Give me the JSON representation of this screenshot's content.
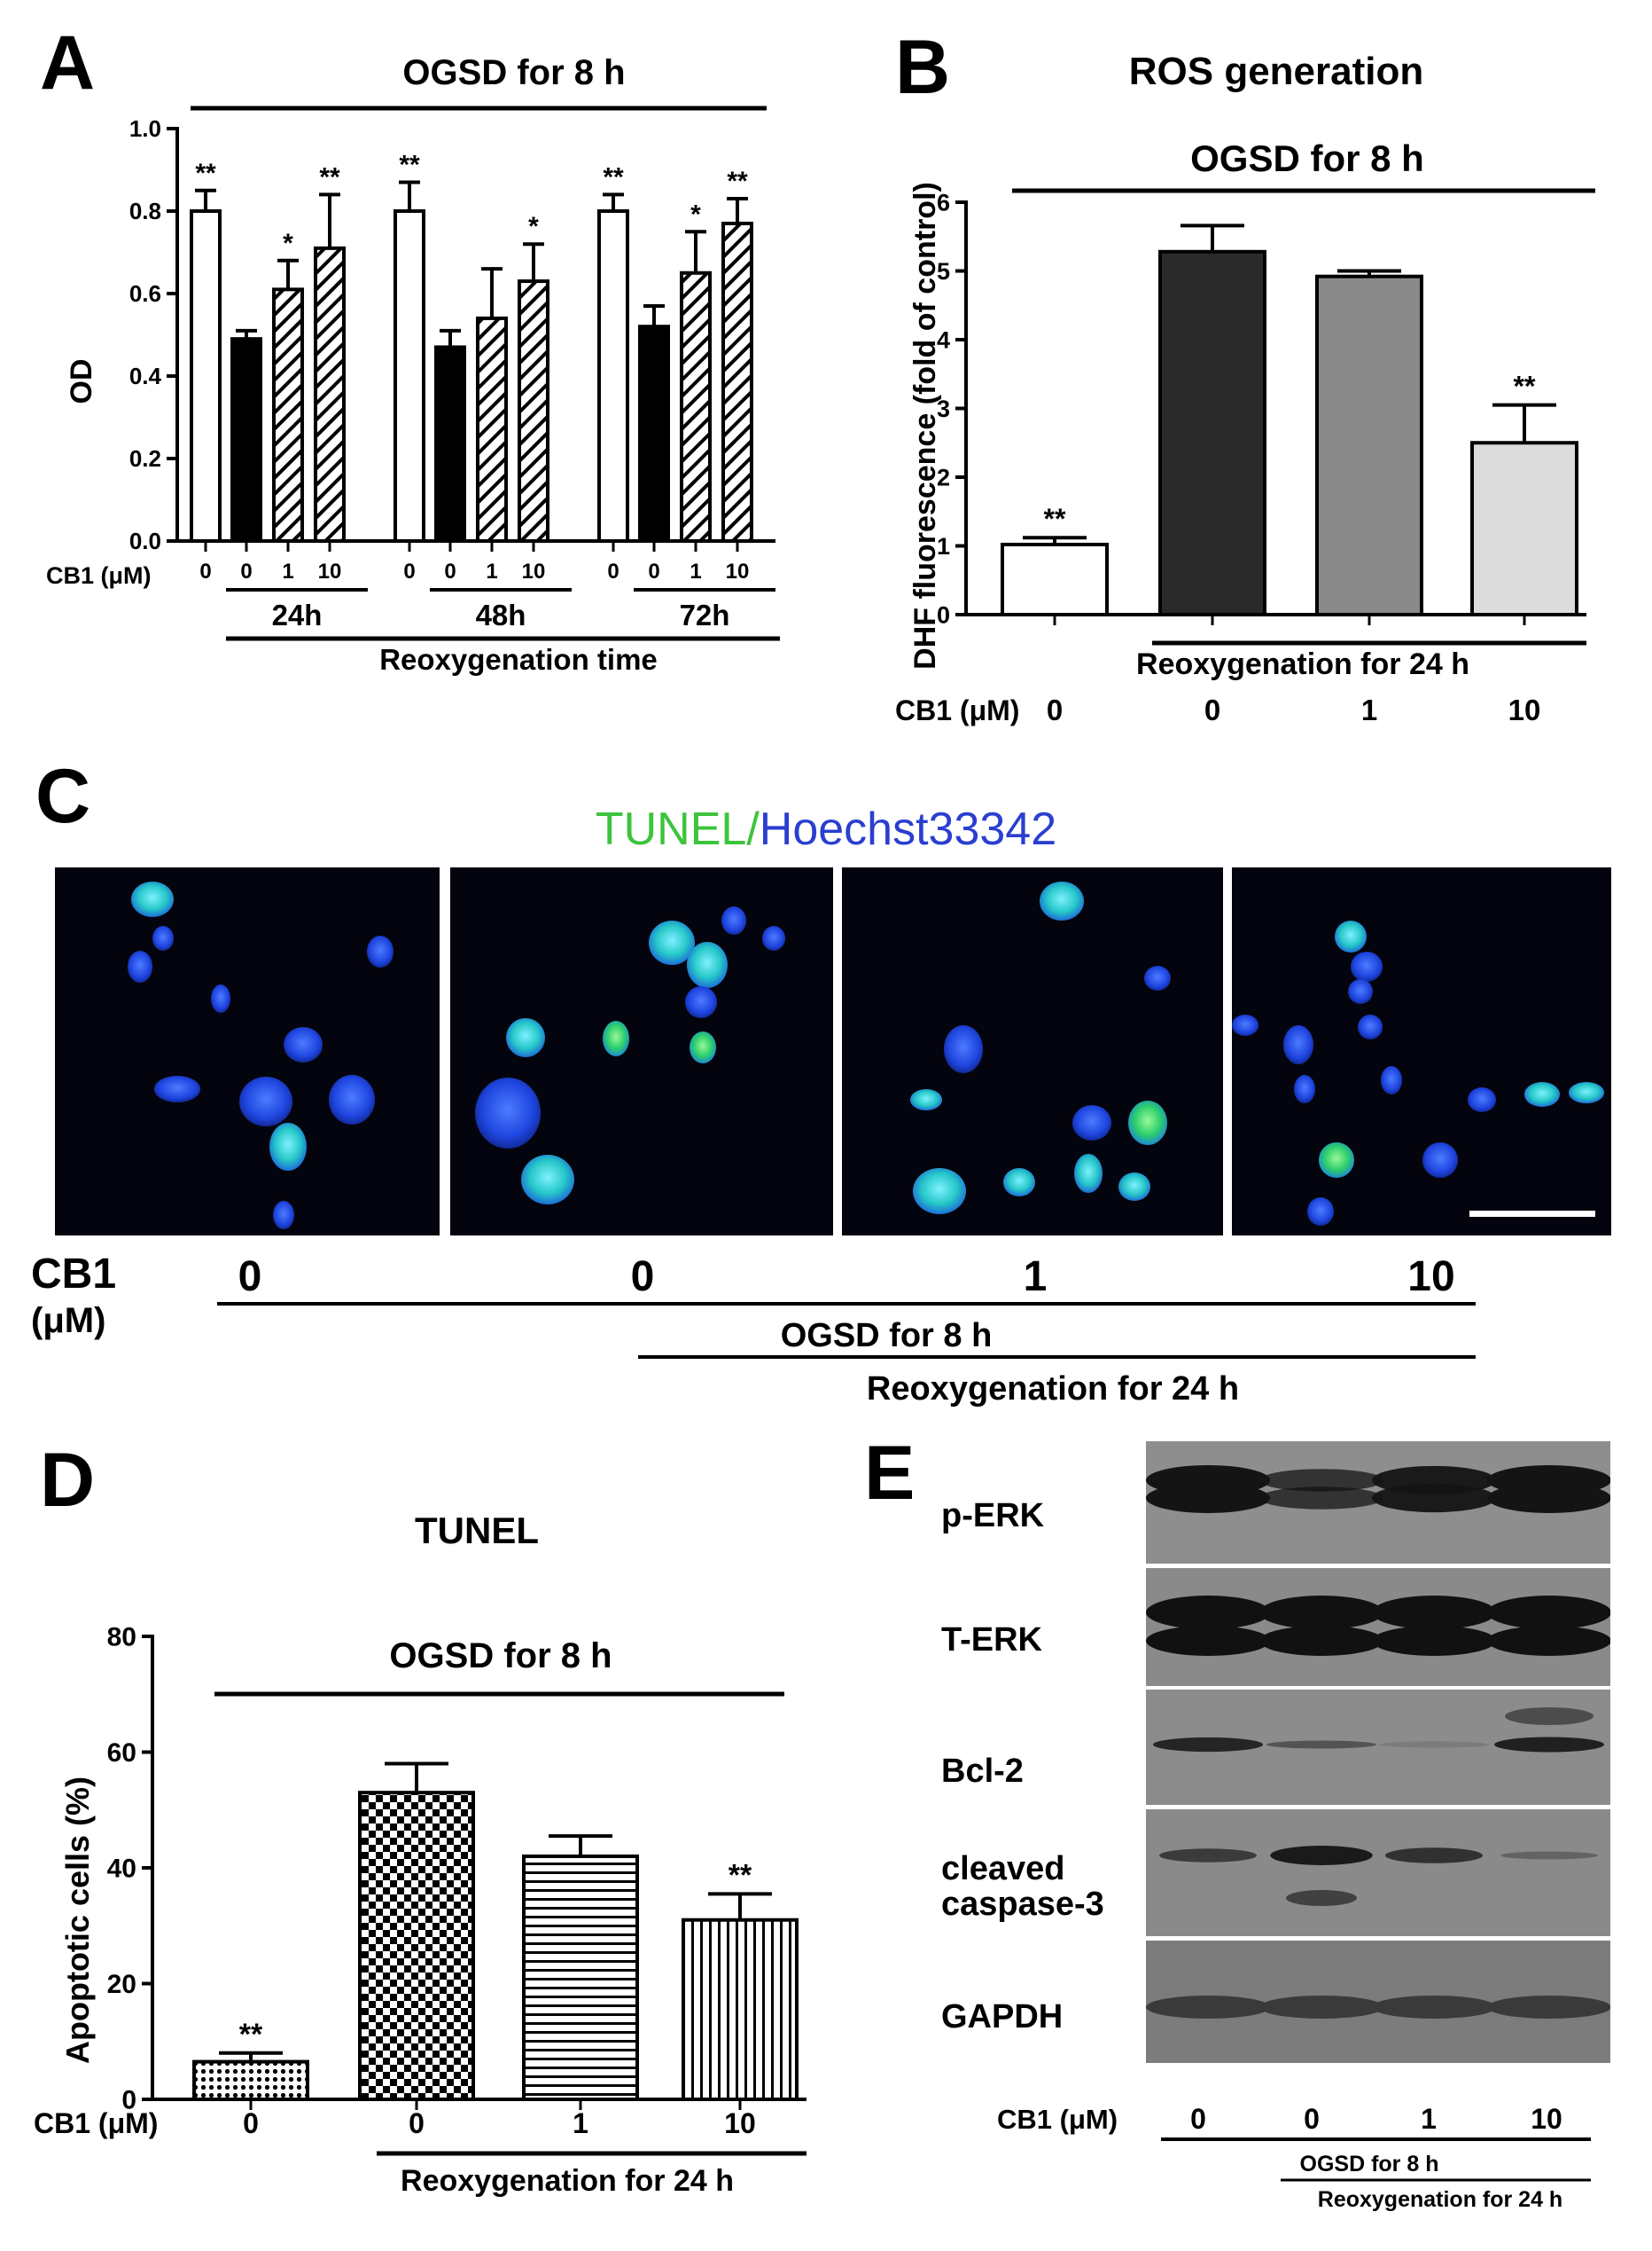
{
  "panels": {
    "a": "A",
    "b": "B",
    "c": "C",
    "d": "D",
    "e": "E"
  },
  "chart_data": [
    {
      "panel": "A",
      "type": "bar",
      "title": "OGSD for 8 h",
      "ylabel": "OD",
      "xlabel": "Reoxygenation time",
      "ylim": [
        0,
        1.0
      ],
      "yticks": [
        "0.0",
        "0.2",
        "0.4",
        "0.6",
        "0.8",
        "1.0"
      ],
      "cb1_label": "CB1 (μM)",
      "categories": [
        "0",
        "0",
        "1",
        "10",
        "0",
        "0",
        "1",
        "10",
        "0",
        "0",
        "1",
        "10"
      ],
      "groups": [
        "24h",
        "48h",
        "72h"
      ],
      "values": [
        0.8,
        0.49,
        0.61,
        0.71,
        0.8,
        0.47,
        0.54,
        0.63,
        0.8,
        0.52,
        0.65,
        0.77
      ],
      "errors": [
        0.05,
        0.02,
        0.07,
        0.13,
        0.07,
        0.04,
        0.12,
        0.09,
        0.04,
        0.05,
        0.1,
        0.06
      ],
      "significance": [
        "**",
        "",
        "*",
        "**",
        "**",
        "",
        "",
        "*",
        "**",
        "",
        "*",
        "**"
      ],
      "fills": [
        "white",
        "black",
        "hatch",
        "hatch",
        "white",
        "black",
        "hatch",
        "hatch",
        "white",
        "black",
        "hatch",
        "hatch"
      ]
    },
    {
      "panel": "B",
      "type": "bar",
      "title": "ROS generation",
      "subtitle": "OGSD for 8 h",
      "ylabel": "DHF fluorescence (fold of control)",
      "xlabel": "Reoxygenation for 24 h",
      "ylim": [
        0,
        6
      ],
      "yticks": [
        "0",
        "1",
        "2",
        "3",
        "4",
        "5",
        "6"
      ],
      "cb1_label": "CB1 (μM)",
      "categories": [
        "0",
        "0",
        "1",
        "10"
      ],
      "values": [
        1.02,
        5.28,
        4.92,
        2.5
      ],
      "errors": [
        0.1,
        0.38,
        0.08,
        0.55
      ],
      "significance": [
        "**",
        "",
        "",
        "**"
      ],
      "colors": [
        "#ffffff",
        "#2a2a2a",
        "#8a8a8a",
        "#dcdcdc"
      ]
    },
    {
      "panel": "D",
      "type": "bar",
      "title": "TUNEL",
      "subtitle": "OGSD for 8 h",
      "ylabel": "Apoptotic cells (%)",
      "xlabel": "Reoxygenation for 24 h",
      "ylim": [
        0,
        80
      ],
      "yticks": [
        "0",
        "20",
        "40",
        "60",
        "80"
      ],
      "cb1_label": "CB1 (μM)",
      "categories": [
        "0",
        "0",
        "1",
        "10"
      ],
      "values": [
        6.5,
        53,
        42,
        31
      ],
      "errors": [
        1.5,
        5,
        3.5,
        4.5
      ],
      "significance": [
        "**",
        "",
        "",
        "**"
      ],
      "fills": [
        "dots",
        "checker",
        "hlines",
        "vlines"
      ]
    }
  ],
  "panel_c": {
    "legend_tunel": "TUNEL/",
    "legend_hoechst": "Hoechst33342",
    "cb1_label": "CB1",
    "unit_label": "(μM)",
    "conditions": [
      "0",
      "0",
      "1",
      "10"
    ],
    "ogsd_label": "OGSD for 8 h",
    "reox_label": "Reoxygenation for 24 h"
  },
  "panel_e": {
    "proteins": [
      "p-ERK",
      "T-ERK",
      "Bcl-2",
      "cleaved caspase-3",
      "GAPDH"
    ],
    "protein_lines": [
      [
        "p-ERK"
      ],
      [
        "T-ERK"
      ],
      [
        "Bcl-2"
      ],
      [
        "cleaved",
        "caspase-3"
      ],
      [
        "GAPDH"
      ]
    ],
    "cb1_label": "CB1 (μM)",
    "conditions": [
      "0",
      "0",
      "1",
      "10"
    ],
    "ogsd_label": "OGSD for 8 h",
    "reox_label": "Reoxygenation for 24 h"
  },
  "colors": {
    "tunel_green": "#3cc43c",
    "hoechst_blue": "#1a3fd0"
  }
}
